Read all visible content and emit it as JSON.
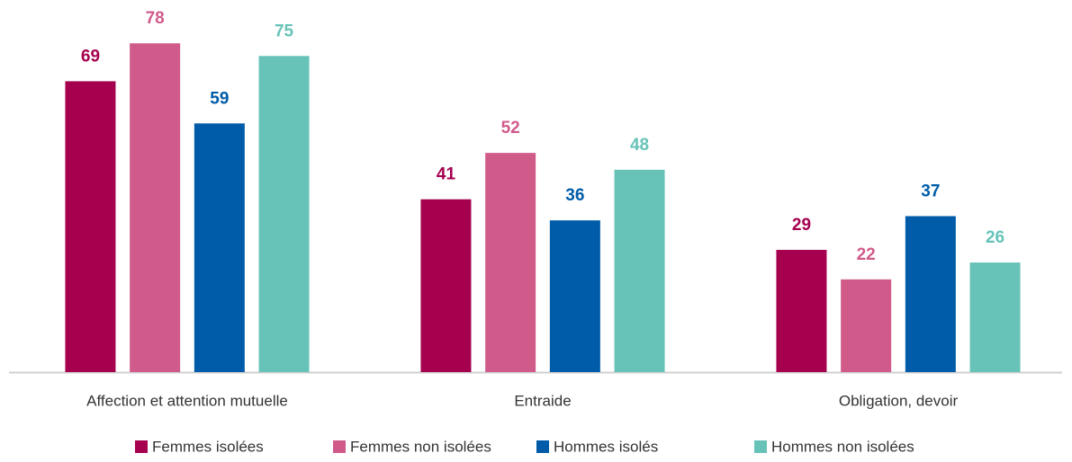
{
  "chart_data": {
    "type": "bar",
    "categories": [
      "Affection et attention mutuelle",
      "Entraide",
      "Obligation, devoir"
    ],
    "series": [
      {
        "name": "Femmes isolées",
        "color": "#a5014f",
        "values": [
          69,
          41,
          29
        ]
      },
      {
        "name": "Femmes non isolées",
        "color": "#d05b8b",
        "values": [
          78,
          52,
          22
        ]
      },
      {
        "name": "Hommes isolés",
        "color": "#005ca9",
        "values": [
          59,
          36,
          37
        ]
      },
      {
        "name": "Hommes non isolées",
        "color": "#67c3b8",
        "values": [
          75,
          48,
          26
        ]
      }
    ],
    "legend": "bottom"
  }
}
